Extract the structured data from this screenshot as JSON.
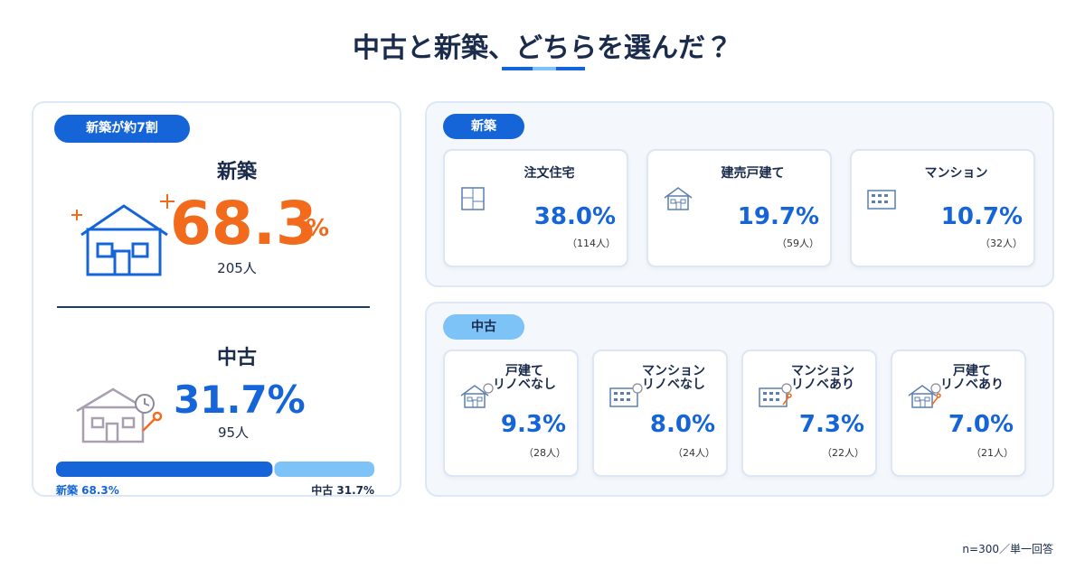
{
  "title": "中古と新築、どちらを選んだ？",
  "summary": {
    "badge": "新築が約7割",
    "new": {
      "label": "新築",
      "value": "68.3",
      "unit": "%",
      "count": "205人"
    },
    "used": {
      "label": "中古",
      "value": "31.7%",
      "count": "95人"
    },
    "bar": [
      {
        "value": 68.3,
        "label": "新築 68.3%",
        "color": "#1565d8"
      },
      {
        "value": 31.7,
        "label": "中古 31.7%",
        "color": "#7ec3f7"
      }
    ]
  },
  "new_homes": {
    "label": "新築",
    "items": [
      {
        "name": [
          "注文住宅"
        ],
        "value": "38.0%",
        "count": "（114人）"
      },
      {
        "name": [
          "建売戸建て"
        ],
        "value": "19.7%",
        "count": "（59人）"
      },
      {
        "name": [
          "マンション"
        ],
        "value": "10.7%",
        "count": "（32人）"
      }
    ]
  },
  "used_homes": {
    "label": "中古",
    "items": [
      {
        "name": [
          "戸建て",
          "リノベなし"
        ],
        "value": "9.3%",
        "count": "（28人）"
      },
      {
        "name": [
          "マンション",
          "リノベなし"
        ],
        "value": "8.0%",
        "count": "（24人）"
      },
      {
        "name": [
          "マンション",
          "リノベあり"
        ],
        "value": "7.3%",
        "count": "（22人）"
      },
      {
        "name": [
          "戸建て",
          "リノベあり"
        ],
        "value": "7.0%",
        "count": "（21人）"
      }
    ]
  },
  "footnote": "n=300／単一回答"
}
